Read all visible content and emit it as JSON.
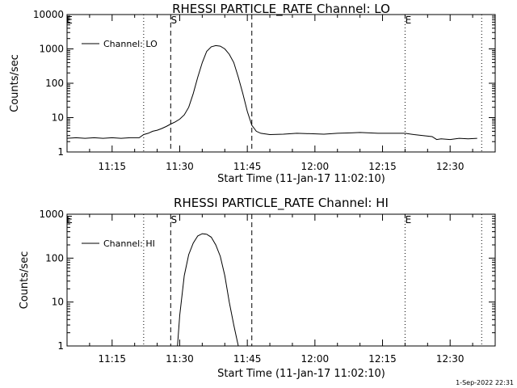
{
  "timestamp": "1-Sep-2022 22:31",
  "chart_data": [
    {
      "type": "line",
      "title": "RHESSI PARTICLE_RATE Channel: LO",
      "xlabel": "Start Time (11-Jan-17 11:02:10)",
      "ylabel": "Counts/sec",
      "yscale": "log",
      "ylim": [
        1,
        10000
      ],
      "xlim": [
        "11:05",
        "12:40"
      ],
      "xticks": [
        "11:15",
        "11:30",
        "11:45",
        "12:00",
        "12:15",
        "12:30"
      ],
      "yticks": [
        "1",
        "10",
        "100",
        "1000",
        "10000"
      ],
      "legend": {
        "position": "top-left",
        "entries": [
          "Channel: LO"
        ]
      },
      "markers": {
        "S": "11:28",
        "E": "12:20"
      },
      "dashed_lines": [
        "11:28",
        "11:46"
      ],
      "dotted_lines": [
        "11:22",
        "12:20",
        "12:37"
      ],
      "series": [
        {
          "name": "Channel: LO",
          "x": [
            "11:05",
            "11:07",
            "11:09",
            "11:11",
            "11:13",
            "11:15",
            "11:17",
            "11:19",
            "11:21",
            "11:22",
            "11:23",
            "11:24",
            "11:25",
            "11:26",
            "11:27",
            "11:28",
            "11:29",
            "11:30",
            "11:31",
            "11:32",
            "11:33",
            "11:34",
            "11:35",
            "11:36",
            "11:37",
            "11:38",
            "11:39",
            "11:40",
            "11:41",
            "11:42",
            "11:43",
            "11:44",
            "11:45",
            "11:46",
            "11:47",
            "11:48",
            "11:50",
            "11:53",
            "11:56",
            "11:59",
            "12:02",
            "12:05",
            "12:08",
            "12:10",
            "12:12",
            "12:14",
            "12:16",
            "12:18",
            "12:20",
            "12:22",
            "12:24",
            "12:26",
            "12:27",
            "12:28",
            "12:30",
            "12:32",
            "12:34",
            "12:36"
          ],
          "values": [
            2.5,
            2.6,
            2.5,
            2.6,
            2.5,
            2.6,
            2.5,
            2.6,
            2.6,
            3.2,
            3.5,
            4.0,
            4.3,
            4.8,
            5.5,
            6.5,
            7.5,
            9,
            12,
            20,
            50,
            150,
            400,
            850,
            1150,
            1250,
            1200,
            1000,
            700,
            400,
            150,
            50,
            15,
            6,
            4,
            3.5,
            3.2,
            3.3,
            3.5,
            3.4,
            3.3,
            3.5,
            3.6,
            3.7,
            3.6,
            3.5,
            3.5,
            3.5,
            3.5,
            3.2,
            3.0,
            2.8,
            2.3,
            2.4,
            2.3,
            2.5,
            2.4,
            2.5
          ]
        }
      ]
    },
    {
      "type": "line",
      "title": "RHESSI PARTICLE_RATE Channel: HI",
      "xlabel": "Start Time (11-Jan-17 11:02:10)",
      "ylabel": "Counts/sec",
      "yscale": "log",
      "ylim": [
        1,
        1000
      ],
      "xlim": [
        "11:05",
        "12:40"
      ],
      "xticks": [
        "11:15",
        "11:30",
        "11:45",
        "12:00",
        "12:15",
        "12:30"
      ],
      "yticks": [
        "1",
        "10",
        "100",
        "1000"
      ],
      "legend": {
        "position": "top-left",
        "entries": [
          "Channel: HI"
        ]
      },
      "markers": {
        "S": "11:28",
        "E": "12:20"
      },
      "dashed_lines": [
        "11:28",
        "11:46"
      ],
      "dotted_lines": [
        "11:22",
        "12:20",
        "12:37"
      ],
      "series": [
        {
          "name": "Channel: HI",
          "x": [
            "11:29.5",
            "11:30",
            "11:31",
            "11:32",
            "11:33",
            "11:34",
            "11:35",
            "11:36",
            "11:37",
            "11:38",
            "11:39",
            "11:40",
            "11:41",
            "11:42",
            "11:43"
          ],
          "values": [
            1,
            5,
            40,
            120,
            220,
            320,
            360,
            350,
            300,
            200,
            110,
            40,
            10,
            3,
            1
          ]
        }
      ]
    }
  ]
}
